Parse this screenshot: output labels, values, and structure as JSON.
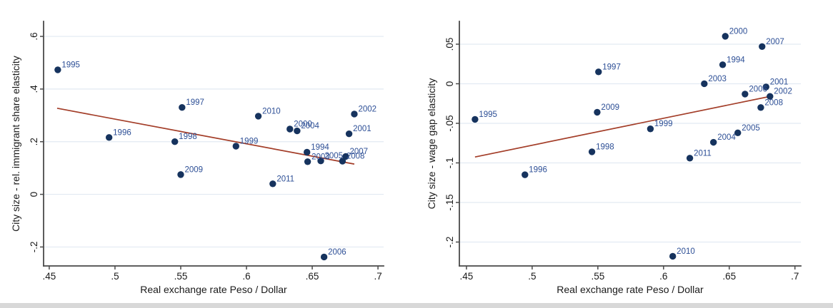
{
  "page": {
    "background": "#ffffff",
    "bottom_strip_color": "#d8d8d8"
  },
  "colors": {
    "marker": "#16335e",
    "marker_label": "#2d4f96",
    "trend": "#a33d28",
    "grid": "#e2eaf2",
    "axis": "#4a4a4a",
    "tick_text": "#1a1a1a"
  },
  "chart_data": [
    {
      "type": "scatter",
      "title": "",
      "xlabel": "Real exchange rate Peso / Dollar",
      "ylabel": "City size - rel. immigrant share elasticity",
      "legend": "none",
      "grid": "horizontal",
      "xlim": [
        0.4457,
        0.7043
      ],
      "ylim": [
        -0.272,
        0.657
      ],
      "x_ticks": [
        {
          "value": 0.45,
          "label": ".45"
        },
        {
          "value": 0.5,
          "label": ".5"
        },
        {
          "value": 0.55,
          "label": ".55"
        },
        {
          "value": 0.6,
          "label": ".6"
        },
        {
          "value": 0.65,
          "label": ".65"
        },
        {
          "value": 0.7,
          "label": ".7"
        }
      ],
      "y_ticks": [
        {
          "value": 0.6,
          "label": ".6"
        },
        {
          "value": 0.4,
          "label": ".4"
        },
        {
          "value": 0.2,
          "label": ".2"
        },
        {
          "value": 0.0,
          "label": "0"
        },
        {
          "value": -0.2,
          "label": "-.2"
        }
      ],
      "points": [
        {
          "label": "1994",
          "x": 0.646,
          "y": 0.16
        },
        {
          "label": "1995",
          "x": 0.4565,
          "y": 0.473
        },
        {
          "label": "1996",
          "x": 0.4955,
          "y": 0.216
        },
        {
          "label": "1997",
          "x": 0.551,
          "y": 0.33
        },
        {
          "label": "1998",
          "x": 0.5455,
          "y": 0.2
        },
        {
          "label": "1999",
          "x": 0.592,
          "y": 0.183
        },
        {
          "label": "2000",
          "x": 0.633,
          "y": 0.248
        },
        {
          "label": "2001",
          "x": 0.678,
          "y": 0.23
        },
        {
          "label": "2002",
          "x": 0.682,
          "y": 0.305
        },
        {
          "label": "2003",
          "x": 0.6465,
          "y": 0.124
        },
        {
          "label": "2004",
          "x": 0.6385,
          "y": 0.241
        },
        {
          "label": "2005",
          "x": 0.6565,
          "y": 0.127
        },
        {
          "label": "2006",
          "x": 0.659,
          "y": -0.238
        },
        {
          "label": "2007",
          "x": 0.6755,
          "y": 0.144
        },
        {
          "label": "2008",
          "x": 0.673,
          "y": 0.126
        },
        {
          "label": "2009",
          "x": 0.55,
          "y": 0.075
        },
        {
          "label": "2010",
          "x": 0.609,
          "y": 0.297
        },
        {
          "label": "2011",
          "x": 0.62,
          "y": 0.04
        }
      ],
      "trend_line": {
        "x1": 0.456,
        "y1": 0.327,
        "x2": 0.682,
        "y2": 0.115
      }
    },
    {
      "type": "scatter",
      "title": "",
      "xlabel": "Real exchange rate Peso / Dollar",
      "ylabel": "City size - wage gap elasticity",
      "legend": "none",
      "grid": "horizontal",
      "xlim": [
        0.4446,
        0.7045
      ],
      "ylim": [
        -0.2302,
        0.0788
      ],
      "x_ticks": [
        {
          "value": 0.45,
          "label": ".45"
        },
        {
          "value": 0.5,
          "label": ".5"
        },
        {
          "value": 0.55,
          "label": ".55"
        },
        {
          "value": 0.6,
          "label": ".6"
        },
        {
          "value": 0.65,
          "label": ".65"
        },
        {
          "value": 0.7,
          "label": ".7"
        }
      ],
      "y_ticks": [
        {
          "value": 0.05,
          "label": ".05"
        },
        {
          "value": 0.0,
          "label": "0"
        },
        {
          "value": -0.05,
          "label": "-.05"
        },
        {
          "value": -0.1,
          "label": "-.1"
        },
        {
          "value": -0.15,
          "label": "-.15"
        },
        {
          "value": -0.2,
          "label": "-.2"
        }
      ],
      "points": [
        {
          "label": "1994",
          "x": 0.645,
          "y": 0.024
        },
        {
          "label": "1995",
          "x": 0.4565,
          "y": -0.045
        },
        {
          "label": "1996",
          "x": 0.4945,
          "y": -0.115
        },
        {
          "label": "1997",
          "x": 0.5505,
          "y": 0.015
        },
        {
          "label": "1998",
          "x": 0.5455,
          "y": -0.086
        },
        {
          "label": "1999",
          "x": 0.59,
          "y": -0.057
        },
        {
          "label": "2000",
          "x": 0.647,
          "y": 0.06
        },
        {
          "label": "2001",
          "x": 0.678,
          "y": -0.004
        },
        {
          "label": "2002",
          "x": 0.681,
          "y": -0.016
        },
        {
          "label": "2003",
          "x": 0.631,
          "y": 0.0
        },
        {
          "label": "2004",
          "x": 0.638,
          "y": -0.074
        },
        {
          "label": "2005",
          "x": 0.6565,
          "y": -0.062
        },
        {
          "label": "2006",
          "x": 0.662,
          "y": -0.013
        },
        {
          "label": "2007",
          "x": 0.675,
          "y": 0.047
        },
        {
          "label": "2008",
          "x": 0.674,
          "y": -0.03
        },
        {
          "label": "2009",
          "x": 0.5495,
          "y": -0.036
        },
        {
          "label": "2010",
          "x": 0.607,
          "y": -0.218
        },
        {
          "label": "2011",
          "x": 0.62,
          "y": -0.094
        }
      ],
      "trend_line": {
        "x1": 0.4565,
        "y1": -0.0925,
        "x2": 0.681,
        "y2": -0.016
      }
    }
  ]
}
